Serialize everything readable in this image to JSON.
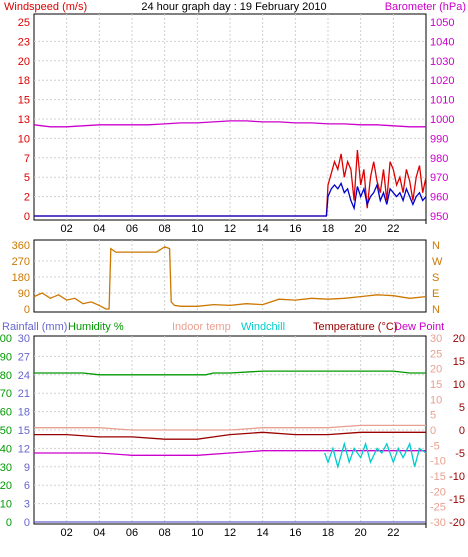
{
  "header": {
    "left_label": "Windspeed (m/s)",
    "title": "24 hour graph day : 19 February 2010",
    "right_label": "Barometer (hPa)"
  },
  "colors": {
    "windspeed": "#dd0000",
    "windavg": "#0000cc",
    "barometer": "#cc00cc",
    "winddir": "#cc7700",
    "humidity": "#009900",
    "rainfall": "#6666cc",
    "indoor": "#e8a090",
    "windchill": "#00cccc",
    "temperature": "#990000",
    "dewpoint": "#cc00cc",
    "frame": "#000000",
    "grid": "#d0d0d0"
  },
  "chart_data": [
    {
      "type": "line",
      "name_panel": "wind-barometer",
      "x_ticks": [
        "02",
        "04",
        "06",
        "08",
        "10",
        "12",
        "14",
        "16",
        "18",
        "20",
        "22"
      ],
      "y_left_ticks": [
        "0",
        "2",
        "5",
        "7",
        "10",
        "13",
        "15",
        "18",
        "20",
        "23",
        "25"
      ],
      "y_left_range": [
        0,
        25
      ],
      "y_right_ticks": [
        "950",
        "960",
        "970",
        "980",
        "990",
        "1000",
        "1010",
        "1020",
        "1030",
        "1040",
        "1050"
      ],
      "y_right_range": [
        950,
        1050
      ],
      "series": [
        {
          "name": "Windspeed (m/s)",
          "axis": "left",
          "color_key": "windspeed",
          "x": [
            0,
            17.8,
            17.9,
            18.0,
            18.2,
            18.4,
            18.6,
            18.8,
            19.0,
            19.2,
            19.4,
            19.6,
            19.8,
            20.0,
            20.2,
            20.4,
            20.6,
            20.8,
            21.0,
            21.2,
            21.4,
            21.6,
            21.8,
            22.0,
            22.2,
            22.4,
            22.6,
            22.8,
            23.0,
            23.2,
            23.4,
            23.6,
            23.8,
            24.0
          ],
          "y": [
            0,
            0,
            0,
            4,
            5.5,
            7,
            6,
            8,
            5,
            7,
            6,
            2,
            8.5,
            4,
            6,
            1,
            5,
            7,
            4.5,
            3,
            6,
            2,
            7,
            6,
            4,
            5,
            3,
            6,
            4.5,
            2,
            5,
            6.5,
            3,
            5
          ]
        },
        {
          "name": "Wind average",
          "axis": "left",
          "color_key": "windavg",
          "x": [
            0,
            17.8,
            17.9,
            18.0,
            18.2,
            18.4,
            18.6,
            18.8,
            19.0,
            19.2,
            19.4,
            19.6,
            19.8,
            20.0,
            20.2,
            20.4,
            20.6,
            20.8,
            21.0,
            21.2,
            21.4,
            21.6,
            21.8,
            22.0,
            22.2,
            22.4,
            22.6,
            22.8,
            23.0,
            23.2,
            23.4,
            23.6,
            23.8,
            24.0
          ],
          "y": [
            0,
            0,
            0,
            2.5,
            3.5,
            4,
            3.5,
            4.2,
            3,
            3.5,
            2,
            1,
            3.8,
            2.5,
            3.5,
            1.5,
            2.5,
            3,
            4,
            2,
            3,
            1.5,
            3.5,
            3,
            2.5,
            3,
            2,
            3.5,
            2.5,
            1.5,
            2.5,
            3,
            2,
            2.5
          ]
        },
        {
          "name": "Barometer (hPa)",
          "axis": "right",
          "color_key": "barometer",
          "x": [
            0,
            1,
            2,
            3,
            4,
            5,
            6,
            7,
            8,
            9,
            10,
            11,
            12,
            13,
            14,
            15,
            16,
            17,
            18,
            19,
            20,
            21,
            22,
            23,
            24
          ],
          "y": [
            997,
            996,
            996,
            996.5,
            997,
            997,
            997,
            997,
            997.5,
            998,
            998,
            998.5,
            999,
            999,
            998.5,
            998.5,
            998,
            998,
            997.5,
            997.5,
            997,
            997,
            996.5,
            996,
            996
          ]
        }
      ]
    },
    {
      "type": "line",
      "name_panel": "wind-direction",
      "y_left_ticks": [
        "0",
        "90",
        "180",
        "270",
        "360"
      ],
      "y_left_range": [
        0,
        360
      ],
      "y_right_ticks": [
        "N",
        "E",
        "S",
        "W",
        "N"
      ],
      "series": [
        {
          "name": "Wind direction",
          "axis": "left",
          "color_key": "winddir",
          "x": [
            0,
            0.5,
            1,
            1.5,
            2,
            2.5,
            3,
            3.5,
            4,
            4.4,
            4.6,
            4.7,
            5,
            6,
            7,
            7.5,
            8,
            8.3,
            8.4,
            8.6,
            9,
            10,
            11,
            12,
            13,
            14,
            15,
            16,
            17,
            18,
            19,
            20,
            21,
            22,
            23,
            24
          ],
          "y": [
            70,
            90,
            60,
            80,
            50,
            60,
            30,
            40,
            20,
            0,
            0,
            340,
            320,
            320,
            320,
            320,
            350,
            340,
            40,
            20,
            15,
            15,
            25,
            20,
            30,
            25,
            55,
            50,
            60,
            55,
            60,
            70,
            80,
            75,
            60,
            70
          ]
        }
      ]
    },
    {
      "type": "line",
      "name_panel": "temperature-humidity",
      "legend": [
        "Rainfall (mm)",
        "Humidity %",
        "Indoor temp",
        "Windchill",
        "Temperature (°C)",
        "Dew Point"
      ],
      "y_rain_ticks": [
        "0",
        "3",
        "6",
        "9",
        "12",
        "15",
        "18",
        "21",
        "24",
        "27",
        "30"
      ],
      "y_rain_range": [
        0,
        30
      ],
      "y_hum_ticks": [
        "0",
        "10",
        "20",
        "30",
        "40",
        "50",
        "60",
        "70",
        "80",
        "90",
        "100"
      ],
      "y_hum_range": [
        0,
        100
      ],
      "y_temp_ticks": [
        "-30",
        "-25",
        "-20",
        "-15",
        "-10",
        "-5",
        "0",
        "5",
        "10",
        "15",
        "20",
        "25",
        "30"
      ],
      "y_temp_range": [
        -30,
        30
      ],
      "y_temp2_ticks": [
        "-20",
        "-15",
        "-10",
        "-5",
        "0",
        "5",
        "10",
        "15",
        "20"
      ],
      "y_temp2_range": [
        -20,
        20
      ],
      "series": [
        {
          "name": "Humidity %",
          "axis": "hum",
          "color_key": "humidity",
          "x": [
            0,
            3,
            4,
            6,
            8,
            10,
            10.5,
            11,
            12,
            14,
            16,
            18,
            20,
            22,
            23,
            24
          ],
          "y": [
            81,
            81,
            80,
            80,
            80,
            80,
            80,
            81,
            81,
            82,
            82,
            82,
            82,
            82,
            81,
            81
          ]
        },
        {
          "name": "Rainfall (mm)",
          "axis": "rain",
          "color_key": "rainfall",
          "x": [
            0,
            24
          ],
          "y": [
            0,
            0
          ]
        },
        {
          "name": "Indoor temp",
          "axis": "temp",
          "color_key": "indoor",
          "x": [
            0,
            2,
            4,
            6,
            8,
            10,
            12,
            14,
            16,
            18,
            20,
            22,
            24
          ],
          "y": [
            0.5,
            0.5,
            0.5,
            0,
            0,
            0,
            0,
            0.5,
            0.5,
            0.5,
            1,
            1,
            1
          ]
        },
        {
          "name": "Temperature (°C)",
          "axis": "temp",
          "color_key": "temperature",
          "x": [
            0,
            2,
            4,
            6,
            8,
            10,
            11,
            12,
            14,
            16,
            18,
            20,
            22,
            24
          ],
          "y": [
            -1,
            -1,
            -1.5,
            -1.5,
            -2,
            -2,
            -1.5,
            -1,
            -0.5,
            -1,
            -1,
            -0.5,
            -0.5,
            -0.5
          ]
        },
        {
          "name": "Dew Point",
          "axis": "temp",
          "color_key": "dewpoint",
          "x": [
            0,
            2,
            4,
            6,
            8,
            10,
            12,
            14,
            16,
            18,
            20,
            22,
            24
          ],
          "y": [
            -5,
            -5,
            -5,
            -5.5,
            -5.5,
            -5.5,
            -5,
            -4.5,
            -4.5,
            -4.5,
            -4.5,
            -4.5,
            -4.5
          ]
        },
        {
          "name": "Windchill",
          "axis": "temp",
          "color_key": "windchill",
          "x": [
            17.8,
            18,
            18.3,
            18.6,
            19,
            19.3,
            19.6,
            20,
            20.3,
            20.6,
            21,
            21.3,
            21.6,
            22,
            22.3,
            22.6,
            23,
            23.3,
            23.6,
            24
          ],
          "y": [
            -5,
            -7,
            -4,
            -8,
            -3,
            -7,
            -4,
            -6,
            -3,
            -7,
            -4,
            -5,
            -3,
            -7,
            -4,
            -6,
            -3,
            -8,
            -4,
            -5
          ]
        }
      ]
    }
  ]
}
